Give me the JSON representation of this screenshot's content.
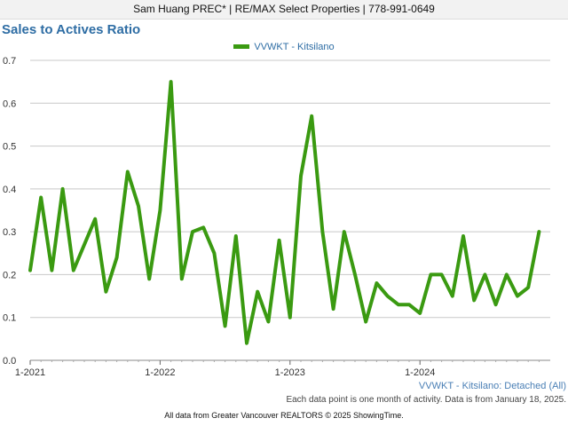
{
  "header": {
    "text": "Sam Huang PREC* | RE/MAX Select Properties | 778-991-0649"
  },
  "chart_data": {
    "type": "line",
    "title": "Sales to Actives Ratio",
    "series": [
      {
        "name": "VVWKT - Kitsilano",
        "color": "#3a9a11",
        "x": [
          "2021-01",
          "2021-02",
          "2021-03",
          "2021-04",
          "2021-05",
          "2021-06",
          "2021-07",
          "2021-08",
          "2021-09",
          "2021-10",
          "2021-11",
          "2021-12",
          "2022-01",
          "2022-02",
          "2022-03",
          "2022-04",
          "2022-05",
          "2022-06",
          "2022-07",
          "2022-08",
          "2022-09",
          "2022-10",
          "2022-11",
          "2022-12",
          "2023-01",
          "2023-02",
          "2023-03",
          "2023-04",
          "2023-05",
          "2023-06",
          "2023-07",
          "2023-08",
          "2023-09",
          "2023-10",
          "2023-11",
          "2023-12",
          "2024-01",
          "2024-02",
          "2024-03",
          "2024-04",
          "2024-05",
          "2024-06",
          "2024-07",
          "2024-08",
          "2024-09",
          "2024-10",
          "2024-11",
          "2024-12"
        ],
        "values": [
          0.21,
          0.38,
          0.21,
          0.4,
          0.21,
          0.27,
          0.33,
          0.16,
          0.24,
          0.44,
          0.36,
          0.19,
          0.35,
          0.65,
          0.19,
          0.3,
          0.31,
          0.25,
          0.08,
          0.29,
          0.04,
          0.16,
          0.09,
          0.28,
          0.1,
          0.43,
          0.57,
          0.3,
          0.12,
          0.3,
          0.2,
          0.09,
          0.18,
          0.15,
          0.13,
          0.13,
          0.11,
          0.2,
          0.2,
          0.15,
          0.29,
          0.14,
          0.2,
          0.13,
          0.2,
          0.15,
          0.17,
          0.3
        ]
      }
    ],
    "x_ticks": [
      "1-2021",
      "1-2022",
      "1-2023",
      "1-2024"
    ],
    "y_ticks": [
      "0.0",
      "0.1",
      "0.2",
      "0.3",
      "0.4",
      "0.5",
      "0.6",
      "0.7"
    ],
    "ylim": [
      0,
      0.7
    ],
    "grid": "horizontal",
    "legend": "top-center",
    "subtitle": "VVWKT - Kitsilano: Detached (All)"
  },
  "footnote": "Each data point is one month of activity. Data is from January 18, 2025.",
  "copyright": "All data from Greater Vancouver REALTORS © 2025 ShowingTime."
}
